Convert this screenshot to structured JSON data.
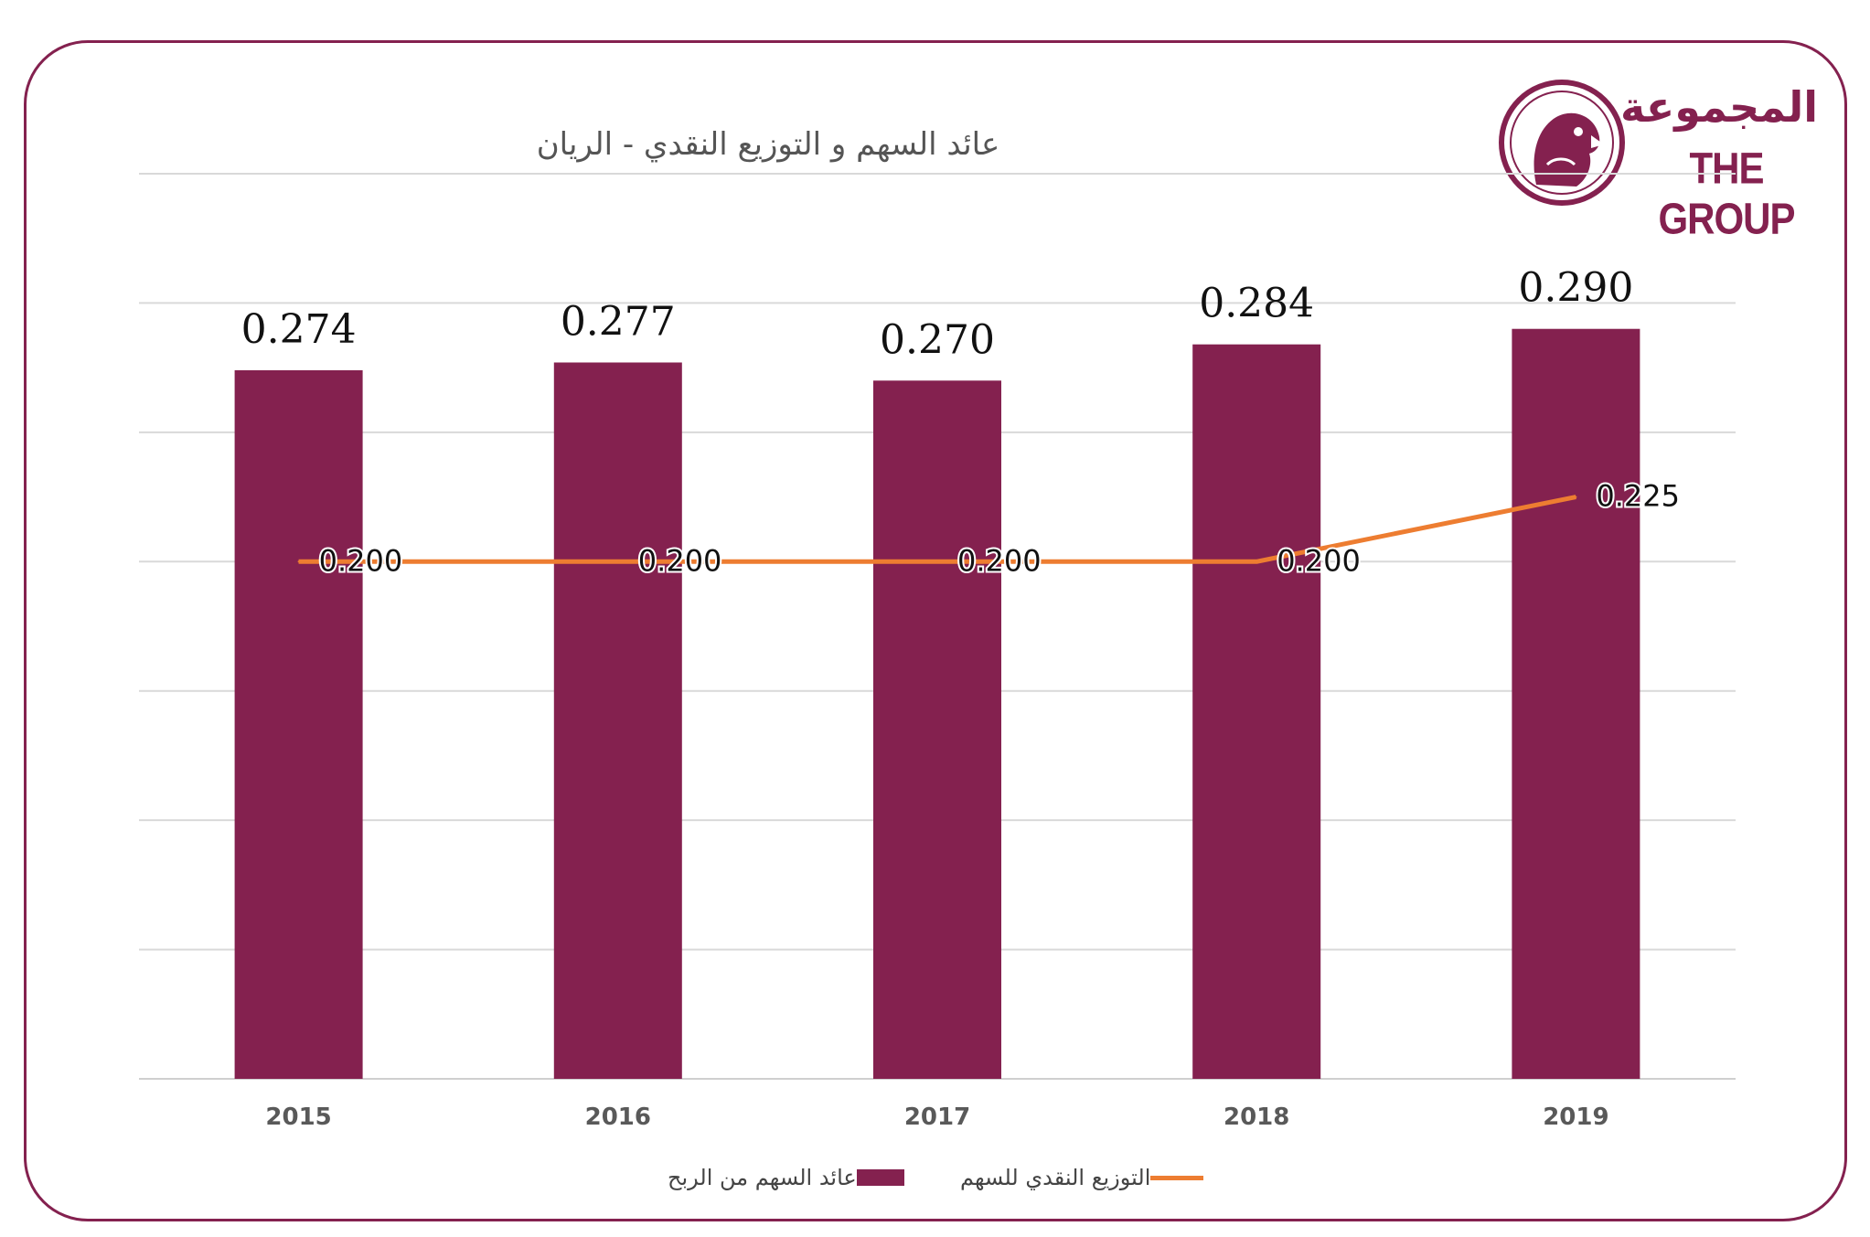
{
  "logo": {
    "arabic_text": "المجموعة",
    "english_text": "THE GROUP"
  },
  "chart_data": {
    "type": "bar",
    "title": "عائد السهم و التوزيع النقدي - الريان",
    "categories": [
      "2015",
      "2016",
      "2017",
      "2018",
      "2019"
    ],
    "series": [
      {
        "name": "عائد السهم من الربح",
        "type": "bar",
        "color": "#84214f",
        "values": [
          0.274,
          0.277,
          0.27,
          0.284,
          0.29
        ],
        "labels": [
          "0.274",
          "0.277",
          "0.270",
          "0.284",
          "0.290"
        ]
      },
      {
        "name": "التوزيع النقدي للسهم",
        "type": "line",
        "color": "#ed7d31",
        "values": [
          0.2,
          0.2,
          0.2,
          0.2,
          0.225
        ],
        "labels": [
          "0.200",
          "0.200",
          "0.200",
          "0.200",
          "0.225"
        ]
      }
    ],
    "ylim": [
      0,
      0.35
    ],
    "grid": true,
    "legend_position": "bottom",
    "xlabel": "",
    "ylabel": ""
  }
}
